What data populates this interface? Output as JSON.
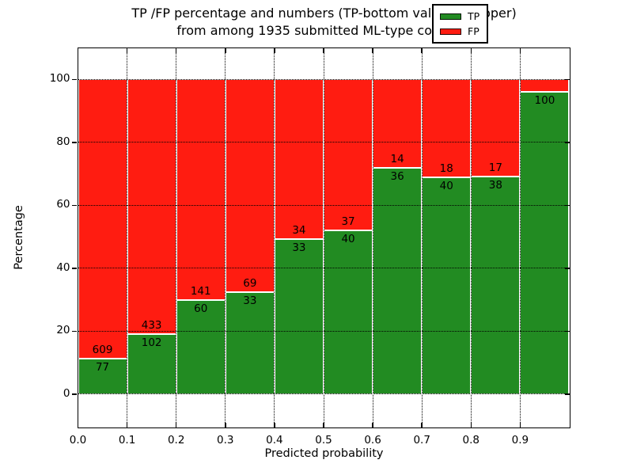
{
  "title": {
    "line1": "TP /FP percentage and numbers (TP-bottom value, FP-upper)",
    "line2": "from among 1935 submitted ML-type contacts"
  },
  "axes": {
    "xlabel": "Predicted probability",
    "ylabel": "Percentage",
    "xtick_labels": [
      "0.0",
      "0.1",
      "0.2",
      "0.3",
      "0.4",
      "0.5",
      "0.6",
      "0.7",
      "0.8",
      "0.9"
    ],
    "ytick_labels": [
      "0",
      "20",
      "40",
      "60",
      "80",
      "100"
    ],
    "yticks": [
      0,
      20,
      40,
      60,
      80,
      100
    ],
    "xlim": [
      0.0,
      1.0
    ],
    "ylim": [
      -10.5,
      110
    ],
    "grid_style": "dotted"
  },
  "legend": {
    "position": "upper-right",
    "items": [
      {
        "label": "TP",
        "color": "#228b22"
      },
      {
        "label": "FP",
        "color": "#ff1c11"
      }
    ]
  },
  "chart_data": {
    "type": "bar",
    "stacked": true,
    "normalized": "percent-of-bin",
    "title": "TP /FP percentage and numbers (TP-bottom value, FP-upper) from among 1935 submitted ML-type contacts",
    "xlabel": "Predicted probability",
    "ylabel": "Percentage",
    "total_submitted": 1935,
    "bin_edges": [
      0.0,
      0.1,
      0.2,
      0.3,
      0.4,
      0.5,
      0.6,
      0.7,
      0.8,
      0.9,
      1.0
    ],
    "series": [
      {
        "name": "TP",
        "color": "#228b22",
        "values": [
          77,
          102,
          60,
          33,
          33,
          40,
          36,
          40,
          38,
          100
        ]
      },
      {
        "name": "FP",
        "color": "#ff1c11",
        "values": [
          609,
          433,
          141,
          69,
          34,
          37,
          14,
          18,
          17,
          4
        ]
      }
    ],
    "tp_label_visible": [
      true,
      true,
      true,
      true,
      true,
      true,
      true,
      true,
      true,
      true
    ],
    "fp_label_visible": [
      true,
      true,
      true,
      true,
      true,
      true,
      true,
      true,
      true,
      false
    ]
  }
}
